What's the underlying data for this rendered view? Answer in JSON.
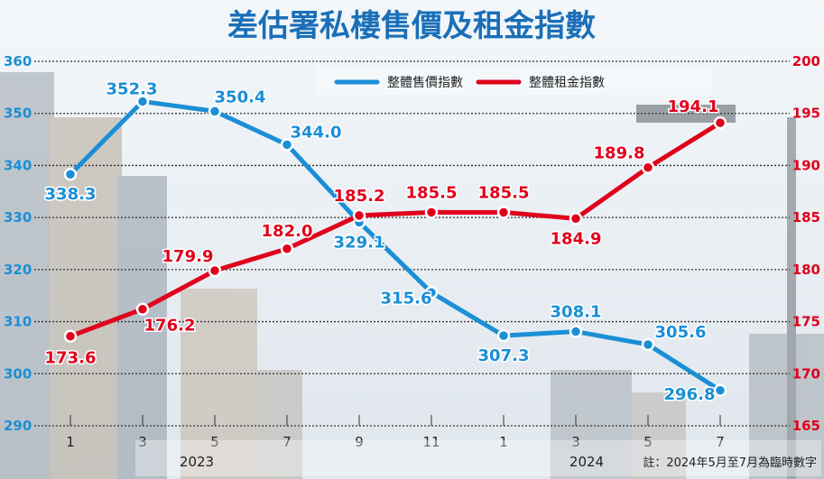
{
  "chart_data": {
    "type": "line",
    "title": "差估署私樓售價及租金指數",
    "categories": [
      "1",
      "3",
      "5",
      "7",
      "9",
      "11",
      "1",
      "3",
      "5",
      "7"
    ],
    "year_labels": [
      "2023",
      "2024"
    ],
    "series": [
      {
        "name": "整體售價指數",
        "axis": "left",
        "color": "#1a8fd6",
        "values": [
          338.3,
          352.3,
          350.4,
          344.0,
          329.1,
          315.6,
          307.3,
          308.1,
          305.6,
          296.8
        ],
        "labels": [
          "338.3",
          "352.3",
          "350.4",
          "344.0",
          "329.1",
          "315.6",
          "307.3",
          "308.1",
          "305.6",
          "296.8"
        ]
      },
      {
        "name": "整體租金指數",
        "axis": "right",
        "color": "#e0001b",
        "values": [
          173.6,
          176.2,
          179.9,
          182.0,
          185.2,
          185.5,
          185.5,
          184.9,
          189.8,
          194.1
        ],
        "labels": [
          "173.6",
          "176.2",
          "179.9",
          "182.0",
          "185.2",
          "185.5",
          "185.5",
          "184.9",
          "189.8",
          "194.1"
        ]
      }
    ],
    "left_axis": {
      "ylim": [
        290,
        360
      ],
      "ticks": [
        "290",
        "300",
        "310",
        "320",
        "330",
        "340",
        "350",
        "360"
      ],
      "color": "#1a8fd6"
    },
    "right_axis": {
      "ylim": [
        165,
        200
      ],
      "ticks": [
        "165",
        "170",
        "175",
        "180",
        "185",
        "190",
        "195",
        "200"
      ],
      "color": "#e0001b"
    },
    "grid": true,
    "legend": "top-center",
    "note": "註：2024年5月至7月為臨時數字"
  }
}
